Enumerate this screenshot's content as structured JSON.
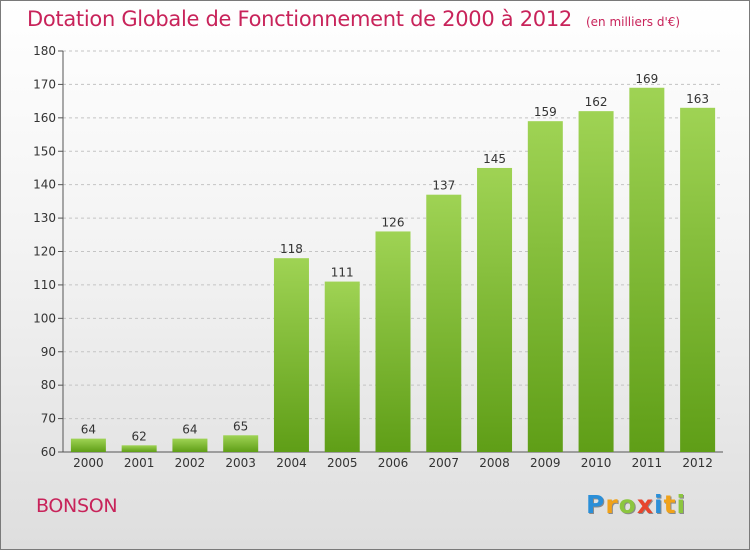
{
  "header": {
    "title": "Dotation Globale de Fonctionnement de 2000 à 2012",
    "unit": "(en milliers d'€)"
  },
  "footer": {
    "commune": "BONSON",
    "logo_letters": [
      "P",
      "r",
      "o",
      "x",
      "i",
      "t",
      "i"
    ],
    "logo_colors": [
      "#2b8fd8",
      "#f0a21a",
      "#8cc63f",
      "#e8452c",
      "#2b8fd8",
      "#f0a21a",
      "#8cc63f"
    ]
  },
  "colors": {
    "bar_top": "#9fd354",
    "bar_bottom": "#5f9e17",
    "title": "#c8235a",
    "label": "#333333"
  },
  "chart_data": {
    "type": "bar",
    "categories": [
      "2000",
      "2001",
      "2002",
      "2003",
      "2004",
      "2005",
      "2006",
      "2007",
      "2008",
      "2009",
      "2010",
      "2011",
      "2012"
    ],
    "values": [
      64,
      62,
      64,
      65,
      118,
      111,
      126,
      137,
      145,
      159,
      162,
      169,
      163
    ],
    "ylim": [
      60,
      180
    ],
    "yticks": [
      60,
      70,
      80,
      90,
      100,
      110,
      120,
      130,
      140,
      150,
      160,
      170,
      180
    ],
    "grid": "horizontal-dashed",
    "legend": "none"
  }
}
